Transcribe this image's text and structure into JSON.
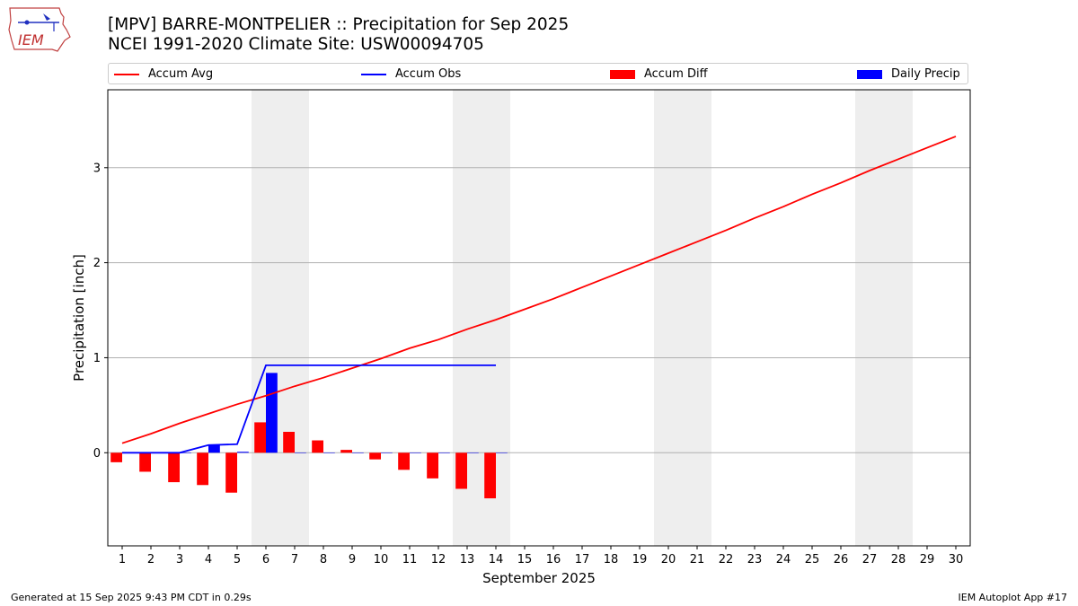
{
  "title": "[MPV] BARRE-MONTPELIER :: Precipitation for Sep 2025",
  "subtitle": "NCEI 1991-2020 Climate Site: USW00094705",
  "footer_left": "Generated at 15 Sep 2025 9:43 PM CDT in 0.29s",
  "footer_right": "IEM Autoplot App #17",
  "logo_text": "IEM",
  "chart_data": {
    "type": "bar",
    "xlabel": "September 2025",
    "ylabel": "Precipitation [inch]",
    "xlim": [
      0.5,
      30.5
    ],
    "ylim": [
      -0.98,
      3.82
    ],
    "x_ticks": [
      1,
      2,
      3,
      4,
      5,
      6,
      7,
      8,
      9,
      10,
      11,
      12,
      13,
      14,
      15,
      16,
      17,
      18,
      19,
      20,
      21,
      22,
      23,
      24,
      25,
      26,
      27,
      28,
      29,
      30
    ],
    "y_ticks": [
      0,
      1,
      2,
      3
    ],
    "grid": "horizontal",
    "legend_placement": "top",
    "weekend_shading": [
      [
        6,
        7
      ],
      [
        13,
        14
      ],
      [
        20,
        21
      ],
      [
        27,
        28
      ]
    ],
    "colors": {
      "accum_avg": "#ff0000",
      "accum_obs": "#0000ff",
      "accum_diff": "#ff0000",
      "daily_precip": "#0000ff",
      "weekend": "#eeeeee",
      "grid": "#b0b0b0"
    },
    "series": [
      {
        "name": "Accum Avg",
        "kind": "line",
        "x": [
          1,
          2,
          3,
          4,
          5,
          6,
          7,
          8,
          9,
          10,
          11,
          12,
          13,
          14,
          15,
          16,
          17,
          18,
          19,
          20,
          21,
          22,
          23,
          24,
          25,
          26,
          27,
          28,
          29,
          30
        ],
        "values": [
          0.1,
          0.2,
          0.31,
          0.41,
          0.51,
          0.6,
          0.7,
          0.79,
          0.89,
          0.99,
          1.1,
          1.19,
          1.3,
          1.4,
          1.51,
          1.62,
          1.74,
          1.86,
          1.98,
          2.1,
          2.22,
          2.34,
          2.47,
          2.59,
          2.72,
          2.84,
          2.97,
          3.09,
          3.21,
          3.33
        ]
      },
      {
        "name": "Accum Obs",
        "kind": "line",
        "x": [
          1,
          2,
          3,
          4,
          5,
          6,
          7,
          8,
          9,
          10,
          11,
          12,
          13,
          14
        ],
        "values": [
          0.0,
          0.0,
          0.0,
          0.08,
          0.09,
          0.92,
          0.92,
          0.92,
          0.92,
          0.92,
          0.92,
          0.92,
          0.92,
          0.92
        ]
      },
      {
        "name": "Accum Diff",
        "kind": "bar",
        "x": [
          1,
          2,
          3,
          4,
          5,
          6,
          7,
          8,
          9,
          10,
          11,
          12,
          13,
          14
        ],
        "values": [
          -0.1,
          -0.2,
          -0.31,
          -0.34,
          -0.42,
          0.32,
          0.22,
          0.13,
          0.03,
          -0.07,
          -0.18,
          -0.27,
          -0.38,
          -0.48
        ]
      },
      {
        "name": "Daily Precip",
        "kind": "bar",
        "x": [
          1,
          2,
          3,
          4,
          5,
          6,
          7,
          8,
          9,
          10,
          11,
          12,
          13,
          14
        ],
        "values": [
          0.0,
          0.0,
          0.0,
          0.08,
          0.01,
          0.84,
          0.0,
          0.0,
          0.0,
          0.0,
          0.0,
          0.0,
          0.0,
          0.0
        ]
      }
    ]
  }
}
